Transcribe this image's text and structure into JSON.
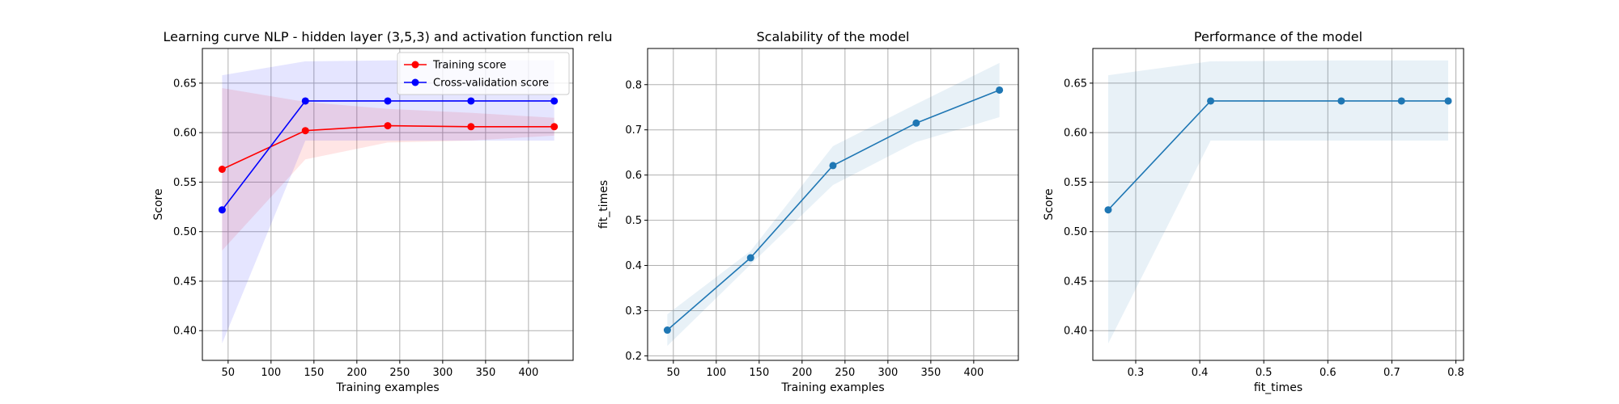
{
  "chart_data": [
    {
      "type": "line",
      "title": "Learning curve NLP - hidden layer (3,5,3) and activation function relu",
      "xlabel": "Training examples",
      "ylabel": "Score",
      "xlim": [
        20,
        452
      ],
      "ylim": [
        0.37,
        0.685
      ],
      "xticks": [
        50,
        100,
        150,
        200,
        250,
        300,
        350,
        400
      ],
      "yticks": [
        0.4,
        0.45,
        0.5,
        0.55,
        0.6,
        0.65
      ],
      "ytick_labels": [
        "0.40",
        "0.45",
        "0.50",
        "0.55",
        "0.60",
        "0.65"
      ],
      "grid": true,
      "legend": "top-right",
      "x": [
        43,
        140,
        236,
        333,
        430
      ],
      "series": [
        {
          "name": "Training score",
          "color": "#ff0000",
          "values": [
            0.563,
            0.602,
            0.607,
            0.606,
            0.606
          ],
          "band_lower": [
            0.481,
            0.573,
            0.59,
            0.592,
            0.597
          ],
          "band_upper": [
            0.645,
            0.631,
            0.624,
            0.62,
            0.615
          ]
        },
        {
          "name": "Cross-validation score",
          "color": "#0000ff",
          "values": [
            0.522,
            0.632,
            0.632,
            0.632,
            0.632
          ],
          "band_lower": [
            0.387,
            0.592,
            0.592,
            0.592,
            0.592
          ],
          "band_upper": [
            0.658,
            0.672,
            0.673,
            0.673,
            0.673
          ]
        }
      ]
    },
    {
      "type": "line",
      "title": "Scalability of the model",
      "xlabel": "Training examples",
      "ylabel": "fit_times",
      "xlim": [
        20,
        452
      ],
      "ylim": [
        0.19,
        0.88
      ],
      "xticks": [
        50,
        100,
        150,
        200,
        250,
        300,
        350,
        400
      ],
      "yticks": [
        0.2,
        0.3,
        0.4,
        0.5,
        0.6,
        0.7,
        0.8
      ],
      "ytick_labels": [
        "0.2",
        "0.3",
        "0.4",
        "0.5",
        "0.6",
        "0.7",
        "0.8"
      ],
      "grid": true,
      "x": [
        43,
        140,
        236,
        333,
        430
      ],
      "series": [
        {
          "color": "#1f77b4",
          "values": [
            0.257,
            0.417,
            0.621,
            0.715,
            0.788
          ],
          "band_lower": [
            0.222,
            0.402,
            0.578,
            0.673,
            0.728
          ],
          "band_upper": [
            0.292,
            0.432,
            0.664,
            0.757,
            0.848
          ]
        }
      ]
    },
    {
      "type": "line",
      "title": "Performance of the model",
      "xlabel": "fit_times",
      "ylabel": "Score",
      "xlim": [
        0.233,
        0.812
      ],
      "ylim": [
        0.37,
        0.685
      ],
      "xticks": [
        0.3,
        0.4,
        0.5,
        0.6,
        0.7,
        0.8
      ],
      "xtick_labels": [
        "0.3",
        "0.4",
        "0.5",
        "0.6",
        "0.7",
        "0.8"
      ],
      "yticks": [
        0.4,
        0.45,
        0.5,
        0.55,
        0.6,
        0.65
      ],
      "ytick_labels": [
        "0.40",
        "0.45",
        "0.50",
        "0.55",
        "0.60",
        "0.65"
      ],
      "grid": true,
      "x": [
        0.257,
        0.417,
        0.621,
        0.715,
        0.788
      ],
      "series": [
        {
          "color": "#1f77b4",
          "values": [
            0.522,
            0.632,
            0.632,
            0.632,
            0.632
          ],
          "band_lower": [
            0.387,
            0.592,
            0.592,
            0.592,
            0.592
          ],
          "band_upper": [
            0.658,
            0.672,
            0.673,
            0.673,
            0.673
          ]
        }
      ]
    }
  ]
}
